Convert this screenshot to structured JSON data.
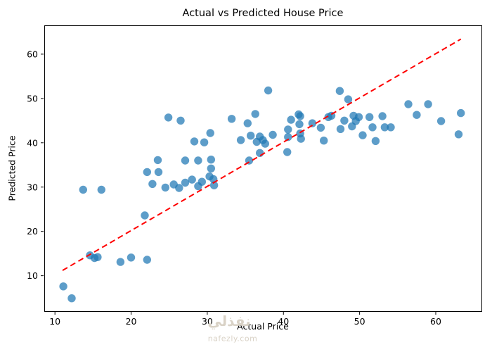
{
  "figure": {
    "title": "Actual vs Predicted House Price",
    "xlabel": "Actual Price",
    "ylabel": "Predicted Price"
  },
  "watermark": {
    "arabic_text": "نفذلي",
    "domain_text": "nafezly.com",
    "color": "#d9d2c6"
  },
  "chart_data": {
    "type": "scatter",
    "title": "Actual vs Predicted House Price",
    "xlabel": "Actual Price",
    "ylabel": "Predicted Price",
    "xlim": [
      8.6,
      66.0
    ],
    "ylim": [
      2.0,
      66.5
    ],
    "x_ticks": [
      10,
      20,
      30,
      40,
      50,
      60
    ],
    "y_ticks": [
      10,
      20,
      30,
      40,
      50,
      60
    ],
    "grid": false,
    "legend": "none",
    "marker_color": "#1f77b4",
    "marker_opacity": 0.72,
    "marker_radius_px": 5.7,
    "points": [
      [
        11.1,
        7.6
      ],
      [
        12.2,
        4.9
      ],
      [
        13.7,
        29.4
      ],
      [
        16.1,
        29.4
      ],
      [
        14.6,
        14.6
      ],
      [
        15.2,
        14.0
      ],
      [
        15.6,
        14.2
      ],
      [
        18.6,
        13.1
      ],
      [
        20.0,
        14.1
      ],
      [
        22.1,
        13.6
      ],
      [
        21.8,
        23.6
      ],
      [
        22.1,
        33.4
      ],
      [
        23.6,
        33.4
      ],
      [
        22.8,
        30.7
      ],
      [
        23.5,
        36.1
      ],
      [
        24.5,
        29.9
      ],
      [
        25.6,
        30.6
      ],
      [
        26.3,
        29.8
      ],
      [
        24.9,
        45.7
      ],
      [
        26.5,
        45.0
      ],
      [
        27.1,
        36.0
      ],
      [
        28.8,
        36.0
      ],
      [
        30.5,
        36.2
      ],
      [
        30.5,
        34.2
      ],
      [
        30.3,
        32.4
      ],
      [
        27.1,
        31.0
      ],
      [
        28.0,
        31.7
      ],
      [
        28.8,
        30.2
      ],
      [
        29.3,
        31.2
      ],
      [
        30.8,
        31.8
      ],
      [
        30.9,
        30.4
      ],
      [
        28.3,
        40.3
      ],
      [
        29.6,
        40.1
      ],
      [
        30.4,
        42.2
      ],
      [
        35.5,
        36.0
      ],
      [
        33.2,
        45.4
      ],
      [
        35.3,
        44.4
      ],
      [
        34.4,
        40.6
      ],
      [
        35.7,
        41.6
      ],
      [
        36.5,
        40.2
      ],
      [
        36.9,
        41.4
      ],
      [
        37.3,
        40.6
      ],
      [
        37.6,
        39.8
      ],
      [
        36.3,
        46.5
      ],
      [
        36.9,
        37.7
      ],
      [
        38.0,
        51.8
      ],
      [
        38.6,
        41.8
      ],
      [
        40.5,
        37.9
      ],
      [
        40.6,
        43.0
      ],
      [
        41.0,
        45.2
      ],
      [
        40.6,
        41.3
      ],
      [
        42.0,
        46.4
      ],
      [
        42.2,
        46.0
      ],
      [
        42.1,
        44.2
      ],
      [
        42.2,
        42.1
      ],
      [
        42.3,
        40.9
      ],
      [
        43.8,
        44.4
      ],
      [
        44.9,
        43.4
      ],
      [
        45.3,
        40.5
      ],
      [
        45.9,
        45.8
      ],
      [
        46.3,
        46.1
      ],
      [
        47.4,
        51.7
      ],
      [
        47.5,
        43.1
      ],
      [
        48.0,
        45.0
      ],
      [
        48.5,
        49.8
      ],
      [
        49.2,
        46.1
      ],
      [
        49.9,
        45.8
      ],
      [
        49.5,
        44.9
      ],
      [
        49.0,
        43.7
      ],
      [
        50.4,
        41.7
      ],
      [
        51.3,
        45.8
      ],
      [
        51.7,
        43.5
      ],
      [
        52.1,
        40.4
      ],
      [
        53.0,
        46.0
      ],
      [
        53.3,
        43.5
      ],
      [
        54.1,
        43.5
      ],
      [
        56.4,
        48.7
      ],
      [
        57.5,
        46.3
      ],
      [
        59.0,
        48.7
      ],
      [
        60.7,
        44.9
      ],
      [
        63.0,
        41.9
      ],
      [
        63.3,
        46.7
      ]
    ],
    "reference_line": {
      "style": "dashed",
      "color": "#ff0000",
      "from": [
        11.0,
        11.2
      ],
      "to": [
        63.3,
        63.4
      ]
    }
  }
}
